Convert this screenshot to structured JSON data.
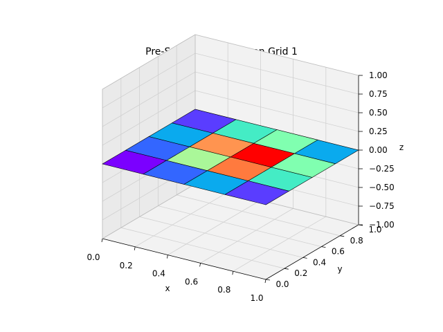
{
  "chart_data": {
    "type": "3d-surface",
    "title": "Pre-Sweep Correction on Grid 1",
    "xlabel": "x",
    "ylabel": "y",
    "zlabel": "z",
    "xlim": [
      0.0,
      1.0
    ],
    "ylim": [
      0.0,
      1.0
    ],
    "zlim": [
      -1.0,
      1.0
    ],
    "x_ticks": [
      "0.0",
      "0.2",
      "0.4",
      "0.6",
      "0.8",
      "1.0"
    ],
    "y_ticks": [
      "0.0",
      "0.2",
      "0.4",
      "0.6",
      "0.8",
      "1.0"
    ],
    "z_ticks": [
      "−1.00",
      "−0.75",
      "−0.50",
      "−0.25",
      "0.00",
      "0.25",
      "0.50",
      "0.75",
      "1.00"
    ],
    "grid": true,
    "surface_z": 0.0,
    "colormap": "rainbow",
    "grid_cells": [
      [
        "#7b00ff",
        "#3366ff",
        "#0aaaee",
        "#5a3dff"
      ],
      [
        "#3366ff",
        "#aaf799",
        "#ff7a3e",
        "#44ecc5"
      ],
      [
        "#0aaaee",
        "#ff9450",
        "#ff0000",
        "#80ffb0"
      ],
      [
        "#5a3dff",
        "#44ecc5",
        "#80ffb0",
        "#0aaaee"
      ]
    ]
  }
}
